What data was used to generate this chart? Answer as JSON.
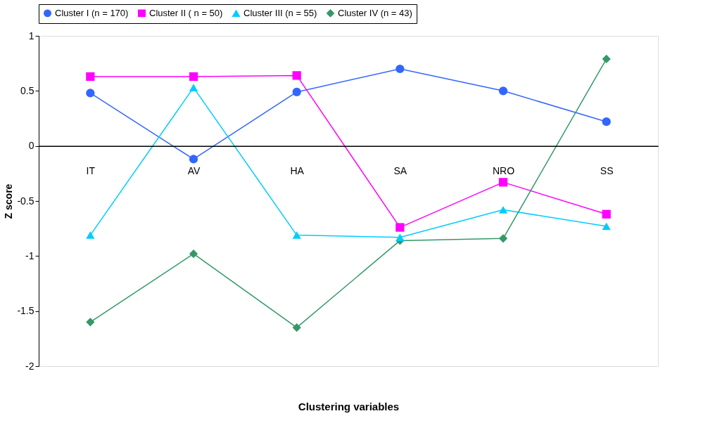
{
  "chart_data": {
    "type": "line",
    "xlabel": "Clustering variables",
    "ylabel": "Z score",
    "categories": [
      "IT",
      "AV",
      "HA",
      "SA",
      "NRO",
      "SS"
    ],
    "series": [
      {
        "name": "Cluster I (n = 170)",
        "color": "#3366ff",
        "marker": "circle",
        "values": [
          0.48,
          -0.12,
          0.49,
          0.7,
          0.5,
          0.22
        ]
      },
      {
        "name": "Cluster II ( n = 50)",
        "color": "#ff00ff",
        "marker": "square",
        "values": [
          0.63,
          0.63,
          0.64,
          -0.74,
          -0.33,
          -0.62
        ]
      },
      {
        "name": "Cluster III (n = 55)",
        "color": "#00ccff",
        "marker": "triangle",
        "values": [
          -0.81,
          0.53,
          -0.81,
          -0.83,
          -0.58,
          -0.73
        ]
      },
      {
        "name": "Cluster IV (n = 43)",
        "color": "#339966",
        "marker": "diamond",
        "values": [
          -1.6,
          -0.98,
          -1.65,
          -0.86,
          -0.84,
          0.79
        ]
      }
    ],
    "ylim": [
      -2,
      1
    ],
    "yticks": [
      -2,
      -1.5,
      -1,
      -0.5,
      0,
      0.5,
      1
    ],
    "grid": false,
    "legend": "top"
  }
}
